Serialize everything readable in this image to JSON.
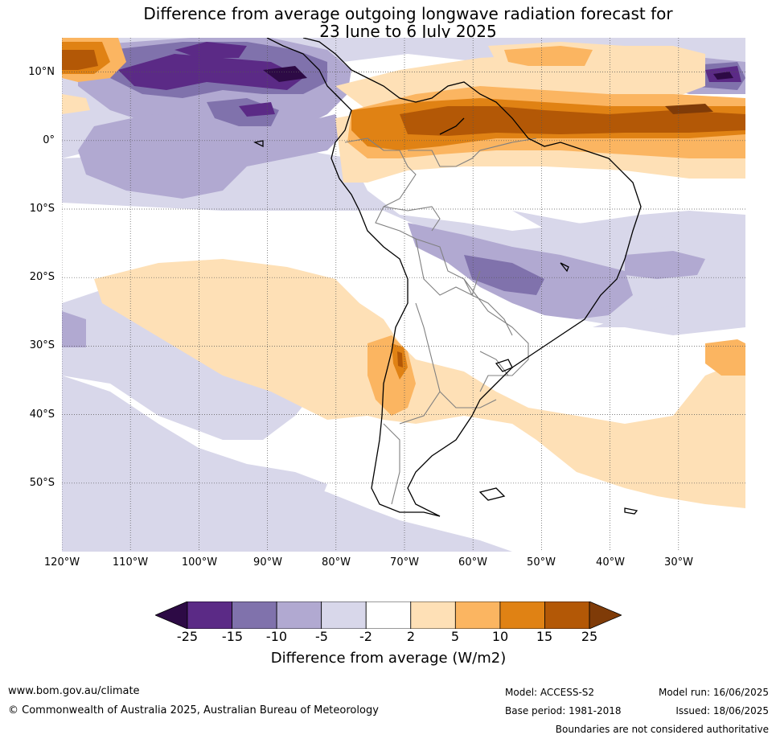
{
  "title": {
    "line1": "Difference from average outgoing longwave radiation forecast for",
    "line2": "23 June to 6 July 2025"
  },
  "map": {
    "lat_labels": [
      "10°N",
      "0°",
      "10°S",
      "20°S",
      "30°S",
      "40°S",
      "50°S"
    ],
    "lon_labels": [
      "120°W",
      "110°W",
      "100°W",
      "90°W",
      "80°W",
      "70°W",
      "60°W",
      "50°W",
      "40°W",
      "30°W"
    ]
  },
  "colorbar": {
    "ticks": [
      "-25",
      "-15",
      "-10",
      "-5",
      "-2",
      "2",
      "5",
      "10",
      "15",
      "25"
    ],
    "label": "Difference from average (W/m2)",
    "colors": [
      "#2d0a45",
      "#5b2a86",
      "#8072ac",
      "#b1a9d1",
      "#d8d7ea",
      "#ffffff",
      "#fee0b6",
      "#fbb561",
      "#e08214",
      "#b35806",
      "#7f3b08"
    ]
  },
  "footer": {
    "website": "www.bom.gov.au/climate",
    "copyright": "© Commonwealth of Australia 2025, Australian Bureau of Meteorology",
    "model": "Model: ACCESS-S2",
    "base_period": "Base period: 1981-2018",
    "model_run": "Model run: 16/06/2025",
    "issued": "Issued: 18/06/2025",
    "disclaimer": "Boundaries are not considered authoritative"
  }
}
